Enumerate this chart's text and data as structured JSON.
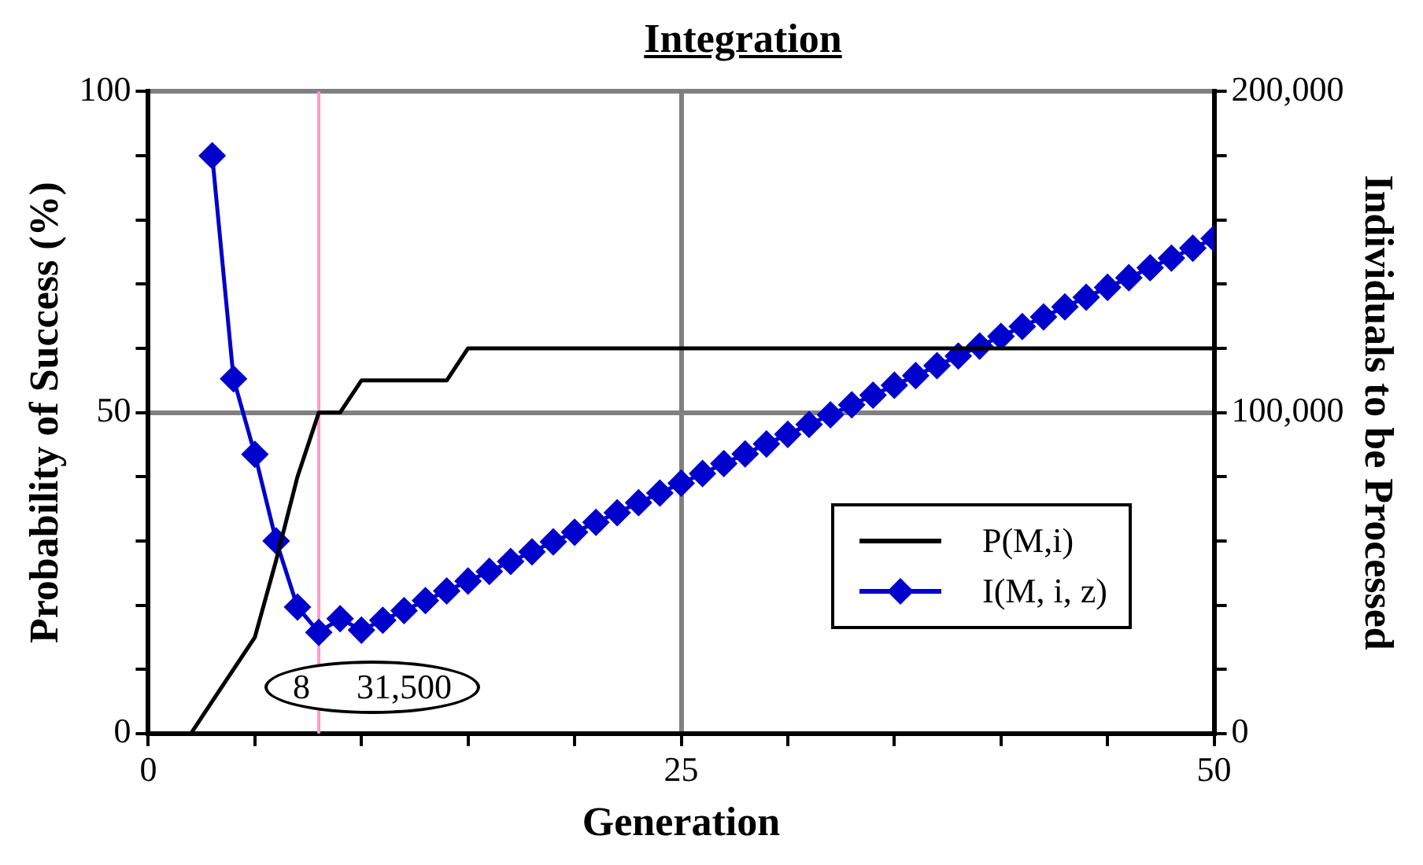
{
  "chart_data": {
    "type": "line",
    "title": "Integration",
    "xlabel": "Generation",
    "ylabel": "Probability of Success (%)",
    "y2label": "Individuals to be Processed",
    "series": [
      {
        "name": "P(M,i)",
        "color": "#000000",
        "marker": "none",
        "x": [
          0,
          1,
          2,
          3,
          4,
          5,
          6,
          7,
          8,
          9,
          10,
          11,
          12,
          13,
          14,
          15,
          20,
          25,
          30,
          35,
          40,
          45,
          50
        ],
        "values": [
          0,
          0,
          0,
          5,
          10,
          15,
          27,
          40,
          50,
          50,
          55,
          55,
          55,
          55,
          55,
          60,
          60,
          60,
          60,
          60,
          60,
          60,
          60
        ]
      },
      {
        "name": "I(M, i, z)",
        "color": "#0000cc",
        "marker": "diamond",
        "axis": "y2",
        "x": [
          3,
          4,
          5,
          6,
          7,
          8,
          9,
          10,
          11,
          12,
          13,
          14,
          15,
          16,
          17,
          18,
          19,
          20,
          21,
          22,
          23,
          24,
          25,
          26,
          27,
          28,
          29,
          30,
          31,
          32,
          33,
          34,
          35,
          36,
          37,
          38,
          39,
          40,
          41,
          42,
          43,
          44,
          45,
          46,
          47,
          48,
          49,
          50
        ],
        "values": [
          180000,
          110500,
          87000,
          60000,
          39400,
          31500,
          35800,
          32200,
          35300,
          38300,
          41400,
          44400,
          47500,
          50500,
          53600,
          56600,
          59700,
          62700,
          65800,
          68800,
          71900,
          74900,
          78000,
          81000,
          84100,
          87100,
          90200,
          93200,
          96300,
          99300,
          102400,
          105400,
          108500,
          111500,
          114600,
          117600,
          120700,
          123700,
          126800,
          129800,
          132900,
          135900,
          139000,
          142000,
          145100,
          148100,
          151200,
          154200
        ]
      }
    ],
    "xlim": [
      0,
      50
    ],
    "xticks": [
      0,
      {
        "value": 5,
        "label": null
      },
      {
        "value": 10,
        "label": null
      },
      {
        "value": 15,
        "label": null
      },
      {
        "value": 20,
        "label": null
      },
      25,
      {
        "value": 30,
        "label": null
      },
      {
        "value": 35,
        "label": null
      },
      {
        "value": 40,
        "label": null
      },
      {
        "value": 45,
        "label": null
      },
      50
    ],
    "ylim": [
      0,
      100
    ],
    "yticks": [
      0,
      {
        "value": 10,
        "label": null
      },
      {
        "value": 20,
        "label": null
      },
      {
        "value": 30,
        "label": null
      },
      {
        "value": 40,
        "label": null
      },
      50,
      {
        "value": 60,
        "label": null
      },
      {
        "value": 70,
        "label": null
      },
      {
        "value": 80,
        "label": null
      },
      {
        "value": 90,
        "label": null
      },
      100
    ],
    "y2lim": [
      0,
      200000
    ],
    "y2ticks": [
      0,
      {
        "value": 20000,
        "label": null
      },
      {
        "value": 40000,
        "label": null
      },
      {
        "value": 60000,
        "label": null
      },
      {
        "value": 80000,
        "label": null
      },
      {
        "value": 100000,
        "label": "100,000"
      },
      {
        "value": 120000,
        "label": null
      },
      {
        "value": 140000,
        "label": null
      },
      {
        "value": 160000,
        "label": null
      },
      {
        "value": 180000,
        "label": null
      },
      {
        "value": 200000,
        "label": "200,000"
      }
    ],
    "ref_lines": [
      {
        "axis": "x",
        "value": 8,
        "color": "#ff99cc"
      }
    ],
    "annotations": [
      "8 31,500"
    ],
    "grid": true,
    "legend": "bottom right"
  }
}
